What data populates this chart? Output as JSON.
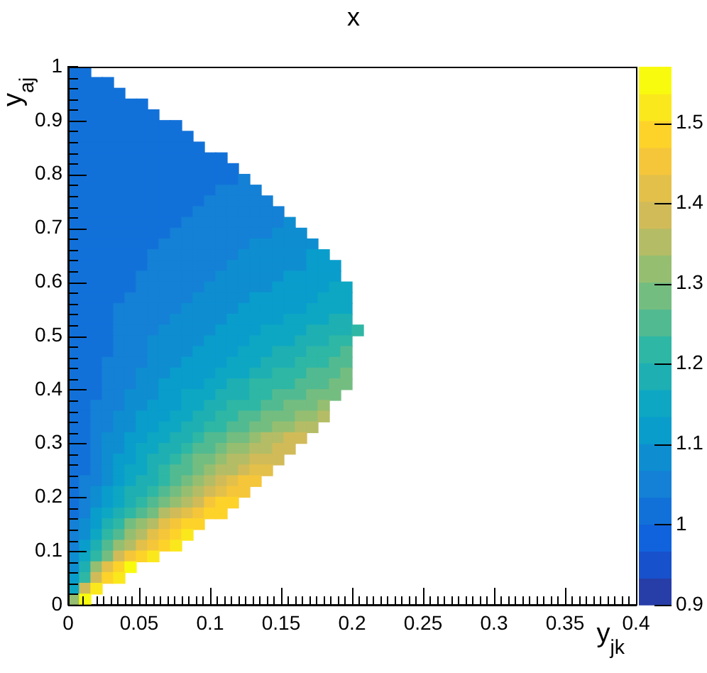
{
  "chart_data": {
    "type": "heatmap",
    "title": "x",
    "xlabel": "y$_{jk}$",
    "ylabel": "y$_{aj}$",
    "x": [
      0.004,
      0.012,
      0.02,
      0.028,
      0.036,
      0.044,
      0.052,
      0.06,
      0.068,
      0.076,
      0.084,
      0.092,
      0.1,
      0.108,
      0.116,
      0.124,
      0.132,
      0.14,
      0.148,
      0.156,
      0.164,
      0.172,
      0.18,
      0.188,
      0.196,
      0.204
    ],
    "y": [
      0.99,
      0.97,
      0.95,
      0.93,
      0.91,
      0.89,
      0.87,
      0.85,
      0.83,
      0.81,
      0.79,
      0.77,
      0.75,
      0.73,
      0.71,
      0.69,
      0.67,
      0.65,
      0.63,
      0.61,
      0.59,
      0.57,
      0.55,
      0.53,
      0.51,
      0.49,
      0.47,
      0.45,
      0.43,
      0.41,
      0.39,
      0.37,
      0.35,
      0.33,
      0.31,
      0.29,
      0.27,
      0.25,
      0.23,
      0.21,
      0.19,
      0.17,
      0.15,
      0.13,
      0.11,
      0.09,
      0.07,
      0.05,
      0.03,
      0.01
    ],
    "cells": [
      [
        1.02,
        1.02,
        null,
        null,
        null,
        null,
        null,
        null,
        null,
        null,
        null,
        null,
        null,
        null,
        null,
        null,
        null,
        null,
        null,
        null,
        null,
        null,
        null,
        null,
        null,
        null
      ],
      [
        1.02,
        1.02,
        1.02,
        1.02,
        null,
        null,
        null,
        null,
        null,
        null,
        null,
        null,
        null,
        null,
        null,
        null,
        null,
        null,
        null,
        null,
        null,
        null,
        null,
        null,
        null,
        null
      ],
      [
        1.02,
        1.02,
        1.02,
        1.02,
        1.02,
        null,
        null,
        null,
        null,
        null,
        null,
        null,
        null,
        null,
        null,
        null,
        null,
        null,
        null,
        null,
        null,
        null,
        null,
        null,
        null,
        null
      ],
      [
        1.02,
        1.02,
        1.02,
        1.02,
        1.02,
        1.02,
        1.02,
        null,
        null,
        null,
        null,
        null,
        null,
        null,
        null,
        null,
        null,
        null,
        null,
        null,
        null,
        null,
        null,
        null,
        null,
        null
      ],
      [
        1.02,
        1.02,
        1.02,
        1.02,
        1.02,
        1.02,
        1.02,
        1.02,
        null,
        null,
        null,
        null,
        null,
        null,
        null,
        null,
        null,
        null,
        null,
        null,
        null,
        null,
        null,
        null,
        null,
        null
      ],
      [
        1.02,
        1.02,
        1.02,
        1.02,
        1.02,
        1.02,
        1.02,
        1.02,
        1.02,
        1.02,
        null,
        null,
        null,
        null,
        null,
        null,
        null,
        null,
        null,
        null,
        null,
        null,
        null,
        null,
        null,
        null
      ],
      [
        1.02,
        1.02,
        1.02,
        1.02,
        1.02,
        1.02,
        1.02,
        1.02,
        1.02,
        1.02,
        1.02,
        null,
        null,
        null,
        null,
        null,
        null,
        null,
        null,
        null,
        null,
        null,
        null,
        null,
        null,
        null
      ],
      [
        1.02,
        1.02,
        1.02,
        1.02,
        1.02,
        1.02,
        1.02,
        1.02,
        1.02,
        1.02,
        1.02,
        1.02,
        null,
        null,
        null,
        null,
        null,
        null,
        null,
        null,
        null,
        null,
        null,
        null,
        null,
        null
      ],
      [
        1.02,
        1.02,
        1.02,
        1.02,
        1.02,
        1.02,
        1.02,
        1.02,
        1.02,
        1.02,
        1.02,
        1.02,
        1.02,
        1.02,
        null,
        null,
        null,
        null,
        null,
        null,
        null,
        null,
        null,
        null,
        null,
        null
      ],
      [
        1.02,
        1.02,
        1.02,
        1.02,
        1.02,
        1.02,
        1.02,
        1.02,
        1.02,
        1.02,
        1.02,
        1.02,
        1.02,
        1.02,
        1.02,
        null,
        null,
        null,
        null,
        null,
        null,
        null,
        null,
        null,
        null,
        null
      ],
      [
        1.02,
        1.02,
        1.02,
        1.02,
        1.02,
        1.02,
        1.02,
        1.02,
        1.02,
        1.02,
        1.02,
        1.02,
        1.02,
        1.02,
        1.02,
        1.05,
        null,
        null,
        null,
        null,
        null,
        null,
        null,
        null,
        null,
        null
      ],
      [
        1.02,
        1.02,
        1.02,
        1.02,
        1.02,
        1.02,
        1.02,
        1.02,
        1.02,
        1.02,
        1.02,
        1.02,
        1.02,
        1.05,
        1.05,
        1.05,
        1.05,
        null,
        null,
        null,
        null,
        null,
        null,
        null,
        null,
        null
      ],
      [
        1.02,
        1.02,
        1.02,
        1.02,
        1.02,
        1.02,
        1.02,
        1.02,
        1.02,
        1.02,
        1.02,
        1.02,
        1.05,
        1.05,
        1.05,
        1.05,
        1.05,
        1.05,
        null,
        null,
        null,
        null,
        null,
        null,
        null,
        null
      ],
      [
        1.02,
        1.02,
        1.02,
        1.02,
        1.02,
        1.02,
        1.02,
        1.02,
        1.02,
        1.02,
        1.02,
        1.05,
        1.05,
        1.05,
        1.05,
        1.05,
        1.05,
        1.05,
        1.05,
        null,
        null,
        null,
        null,
        null,
        null,
        null
      ],
      [
        1.02,
        1.02,
        1.02,
        1.02,
        1.02,
        1.02,
        1.02,
        1.02,
        1.02,
        1.02,
        1.05,
        1.05,
        1.05,
        1.05,
        1.05,
        1.05,
        1.05,
        1.05,
        1.05,
        1.08,
        null,
        null,
        null,
        null,
        null,
        null
      ],
      [
        1.02,
        1.02,
        1.02,
        1.02,
        1.02,
        1.02,
        1.02,
        1.02,
        1.02,
        1.05,
        1.05,
        1.05,
        1.05,
        1.05,
        1.05,
        1.05,
        1.05,
        1.05,
        1.08,
        1.08,
        1.08,
        null,
        null,
        null,
        null,
        null
      ],
      [
        1.02,
        1.02,
        1.02,
        1.02,
        1.02,
        1.02,
        1.02,
        1.02,
        1.05,
        1.05,
        1.05,
        1.05,
        1.05,
        1.05,
        1.05,
        1.05,
        1.08,
        1.08,
        1.08,
        1.08,
        1.08,
        1.08,
        null,
        null,
        null,
        null
      ],
      [
        1.02,
        1.02,
        1.02,
        1.02,
        1.02,
        1.02,
        1.02,
        1.05,
        1.05,
        1.05,
        1.05,
        1.05,
        1.05,
        1.05,
        1.05,
        1.08,
        1.08,
        1.08,
        1.08,
        1.08,
        1.08,
        1.12,
        1.12,
        null,
        null,
        null
      ],
      [
        1.02,
        1.02,
        1.02,
        1.02,
        1.02,
        1.02,
        1.02,
        1.05,
        1.05,
        1.05,
        1.05,
        1.05,
        1.05,
        1.05,
        1.08,
        1.08,
        1.08,
        1.08,
        1.08,
        1.08,
        1.08,
        1.12,
        1.12,
        1.12,
        null,
        null
      ],
      [
        1.02,
        1.02,
        1.02,
        1.02,
        1.02,
        1.02,
        1.05,
        1.05,
        1.05,
        1.05,
        1.05,
        1.05,
        1.05,
        1.08,
        1.08,
        1.08,
        1.08,
        1.08,
        1.08,
        1.12,
        1.12,
        1.12,
        1.12,
        1.12,
        null,
        null
      ],
      [
        1.02,
        1.02,
        1.02,
        1.02,
        1.02,
        1.02,
        1.05,
        1.05,
        1.05,
        1.05,
        1.05,
        1.05,
        1.08,
        1.08,
        1.08,
        1.08,
        1.08,
        1.08,
        1.12,
        1.12,
        1.12,
        1.12,
        1.12,
        1.15,
        1.15,
        null
      ],
      [
        1.02,
        1.02,
        1.02,
        1.02,
        1.02,
        1.05,
        1.05,
        1.05,
        1.05,
        1.05,
        1.05,
        1.08,
        1.08,
        1.08,
        1.08,
        1.08,
        1.12,
        1.12,
        1.12,
        1.12,
        1.12,
        1.12,
        1.15,
        1.15,
        1.15,
        null
      ],
      [
        1.02,
        1.02,
        1.02,
        1.02,
        1.05,
        1.05,
        1.05,
        1.05,
        1.05,
        1.05,
        1.08,
        1.08,
        1.08,
        1.08,
        1.08,
        1.12,
        1.12,
        1.12,
        1.12,
        1.12,
        1.12,
        1.15,
        1.15,
        1.15,
        1.15,
        null
      ],
      [
        1.02,
        1.02,
        1.02,
        1.02,
        1.05,
        1.05,
        1.05,
        1.05,
        1.05,
        1.08,
        1.08,
        1.08,
        1.08,
        1.08,
        1.12,
        1.12,
        1.12,
        1.12,
        1.12,
        1.15,
        1.15,
        1.15,
        1.15,
        1.18,
        1.18,
        null
      ],
      [
        1.02,
        1.02,
        1.02,
        1.02,
        1.05,
        1.05,
        1.05,
        1.05,
        1.08,
        1.08,
        1.08,
        1.08,
        1.08,
        1.12,
        1.12,
        1.12,
        1.12,
        1.15,
        1.15,
        1.15,
        1.15,
        1.18,
        1.18,
        1.18,
        1.18,
        1.22
      ],
      [
        1.02,
        1.02,
        1.02,
        1.02,
        1.05,
        1.05,
        1.05,
        1.08,
        1.08,
        1.08,
        1.08,
        1.08,
        1.12,
        1.12,
        1.12,
        1.12,
        1.15,
        1.15,
        1.15,
        1.15,
        1.18,
        1.18,
        1.18,
        1.22,
        1.22,
        null
      ],
      [
        1.02,
        1.02,
        1.02,
        1.02,
        1.05,
        1.05,
        1.05,
        1.08,
        1.08,
        1.08,
        1.08,
        1.12,
        1.12,
        1.12,
        1.12,
        1.15,
        1.15,
        1.15,
        1.18,
        1.18,
        1.18,
        1.22,
        1.22,
        1.22,
        1.25,
        null
      ],
      [
        1.02,
        1.02,
        1.02,
        1.05,
        1.05,
        1.05,
        1.05,
        1.08,
        1.08,
        1.08,
        1.12,
        1.12,
        1.12,
        1.12,
        1.15,
        1.15,
        1.15,
        1.18,
        1.18,
        1.18,
        1.22,
        1.22,
        1.22,
        1.25,
        1.25,
        null
      ],
      [
        1.02,
        1.02,
        1.02,
        1.05,
        1.05,
        1.05,
        1.08,
        1.08,
        1.08,
        1.12,
        1.12,
        1.12,
        1.12,
        1.15,
        1.15,
        1.15,
        1.18,
        1.18,
        1.22,
        1.22,
        1.22,
        1.25,
        1.25,
        1.25,
        1.29,
        null
      ],
      [
        1.02,
        1.02,
        1.02,
        1.05,
        1.05,
        1.05,
        1.08,
        1.08,
        1.12,
        1.12,
        1.12,
        1.12,
        1.15,
        1.15,
        1.18,
        1.18,
        1.22,
        1.22,
        1.22,
        1.22,
        1.25,
        1.25,
        1.25,
        1.29,
        1.29,
        null
      ],
      [
        1.02,
        1.02,
        1.02,
        1.05,
        1.05,
        1.08,
        1.08,
        1.08,
        1.12,
        1.12,
        1.15,
        1.15,
        1.15,
        1.18,
        1.18,
        1.18,
        1.22,
        1.22,
        1.25,
        1.25,
        1.25,
        1.29,
        1.29,
        1.29,
        null,
        null
      ],
      [
        1.02,
        1.02,
        1.05,
        1.05,
        1.05,
        1.08,
        1.08,
        1.12,
        1.12,
        1.12,
        1.15,
        1.15,
        1.18,
        1.18,
        1.22,
        1.22,
        1.22,
        1.25,
        1.25,
        1.29,
        1.29,
        1.29,
        1.32,
        null,
        null,
        null
      ],
      [
        1.02,
        1.02,
        1.05,
        1.05,
        1.08,
        1.08,
        1.12,
        1.12,
        1.12,
        1.15,
        1.15,
        1.18,
        1.18,
        1.22,
        1.22,
        1.25,
        1.25,
        1.29,
        1.29,
        1.29,
        1.32,
        1.32,
        1.35,
        null,
        null,
        null
      ],
      [
        1.02,
        1.02,
        1.05,
        1.05,
        1.08,
        1.08,
        1.12,
        1.12,
        1.15,
        1.15,
        1.18,
        1.18,
        1.22,
        1.22,
        1.25,
        1.25,
        1.29,
        1.29,
        1.32,
        1.32,
        1.35,
        1.35,
        null,
        null,
        null,
        null
      ],
      [
        1.02,
        1.02,
        1.05,
        1.08,
        1.08,
        1.12,
        1.12,
        1.15,
        1.15,
        1.18,
        1.18,
        1.22,
        1.25,
        1.25,
        1.29,
        1.29,
        1.32,
        1.35,
        1.35,
        1.39,
        1.39,
        null,
        null,
        null,
        null,
        null
      ],
      [
        1.02,
        1.02,
        1.05,
        1.08,
        1.08,
        1.12,
        1.15,
        1.15,
        1.18,
        1.18,
        1.22,
        1.25,
        1.25,
        1.29,
        1.32,
        1.32,
        1.35,
        1.35,
        1.39,
        1.39,
        null,
        null,
        null,
        null,
        null,
        null
      ],
      [
        1.02,
        1.02,
        1.05,
        1.08,
        1.12,
        1.12,
        1.15,
        1.18,
        1.18,
        1.22,
        1.25,
        1.29,
        1.29,
        1.32,
        1.35,
        1.35,
        1.39,
        1.39,
        1.39,
        null,
        null,
        null,
        null,
        null,
        null,
        null
      ],
      [
        1.02,
        1.02,
        1.05,
        1.08,
        1.12,
        1.15,
        1.15,
        1.18,
        1.22,
        1.25,
        1.25,
        1.29,
        1.32,
        1.35,
        1.35,
        1.39,
        1.42,
        1.42,
        null,
        null,
        null,
        null,
        null,
        null,
        null,
        null
      ],
      [
        1.02,
        1.05,
        1.05,
        1.08,
        1.12,
        1.15,
        1.18,
        1.18,
        1.22,
        1.25,
        1.29,
        1.32,
        1.35,
        1.39,
        1.42,
        1.45,
        1.45,
        null,
        null,
        null,
        null,
        null,
        null,
        null,
        null,
        null
      ],
      [
        1.02,
        1.05,
        1.08,
        1.12,
        1.15,
        1.18,
        1.18,
        1.22,
        1.25,
        1.29,
        1.32,
        1.35,
        1.39,
        1.42,
        1.45,
        1.45,
        null,
        null,
        null,
        null,
        null,
        null,
        null,
        null,
        null,
        null
      ],
      [
        1.02,
        1.05,
        1.08,
        1.12,
        1.15,
        1.18,
        1.22,
        1.25,
        1.29,
        1.32,
        1.35,
        1.39,
        1.45,
        1.49,
        1.49,
        null,
        null,
        null,
        null,
        null,
        null,
        null,
        null,
        null,
        null,
        null
      ],
      [
        1.02,
        1.05,
        1.12,
        1.15,
        1.18,
        1.22,
        1.25,
        1.29,
        1.35,
        1.39,
        1.42,
        1.45,
        1.49,
        1.49,
        null,
        null,
        null,
        null,
        null,
        null,
        null,
        null,
        null,
        null,
        null,
        null
      ],
      [
        1.05,
        1.08,
        1.12,
        1.18,
        1.22,
        1.29,
        1.32,
        1.35,
        1.42,
        1.45,
        1.49,
        1.49,
        null,
        null,
        null,
        null,
        null,
        null,
        null,
        null,
        null,
        null,
        null,
        null,
        null,
        null
      ],
      [
        1.05,
        1.08,
        1.15,
        1.22,
        1.25,
        1.32,
        1.35,
        1.42,
        1.45,
        1.49,
        1.52,
        null,
        null,
        null,
        null,
        null,
        null,
        null,
        null,
        null,
        null,
        null,
        null,
        null,
        null,
        null
      ],
      [
        1.05,
        1.12,
        1.18,
        1.25,
        1.32,
        1.35,
        1.42,
        1.45,
        1.49,
        1.52,
        null,
        null,
        null,
        null,
        null,
        null,
        null,
        null,
        null,
        null,
        null,
        null,
        null,
        null,
        null,
        null
      ],
      [
        1.08,
        1.15,
        1.22,
        1.29,
        1.39,
        1.45,
        1.49,
        1.52,
        null,
        null,
        null,
        null,
        null,
        null,
        null,
        null,
        null,
        null,
        null,
        null,
        null,
        null,
        null,
        null,
        null,
        null
      ],
      [
        1.08,
        1.18,
        1.32,
        1.42,
        1.49,
        1.55,
        null,
        null,
        null,
        null,
        null,
        null,
        null,
        null,
        null,
        null,
        null,
        null,
        null,
        null,
        null,
        null,
        null,
        null,
        null,
        null
      ],
      [
        1.12,
        1.22,
        1.39,
        1.49,
        1.52,
        null,
        null,
        null,
        null,
        null,
        null,
        null,
        null,
        null,
        null,
        null,
        null,
        null,
        null,
        null,
        null,
        null,
        null,
        null,
        null,
        null
      ],
      [
        1.15,
        1.39,
        1.52,
        null,
        null,
        null,
        null,
        null,
        null,
        null,
        null,
        null,
        null,
        null,
        null,
        null,
        null,
        null,
        null,
        null,
        null,
        null,
        null,
        null,
        null,
        null
      ],
      [
        1.32,
        1.55,
        null,
        null,
        null,
        null,
        null,
        null,
        null,
        null,
        null,
        null,
        null,
        null,
        null,
        null,
        null,
        null,
        null,
        null,
        null,
        null,
        null,
        null,
        null,
        null
      ]
    ],
    "xlim": [
      0,
      0.4
    ],
    "xticks": [
      0,
      {
        "value": 0.01,
        "label": null
      },
      {
        "value": 0.02,
        "label": null
      },
      {
        "value": 0.03,
        "label": null
      },
      {
        "value": 0.04,
        "label": null
      },
      0.05,
      {
        "value": 0.06,
        "label": null
      },
      {
        "value": 0.07,
        "label": null
      },
      {
        "value": 0.08,
        "label": null
      },
      {
        "value": 0.09,
        "label": null
      },
      0.1,
      {
        "value": 0.11,
        "label": null
      },
      {
        "value": 0.12,
        "label": null
      },
      {
        "value": 0.13,
        "label": null
      },
      {
        "value": 0.14,
        "label": null
      },
      0.15,
      {
        "value": 0.16,
        "label": null
      },
      {
        "value": 0.17,
        "label": null
      },
      {
        "value": 0.18,
        "label": null
      },
      {
        "value": 0.19,
        "label": null
      },
      0.2,
      {
        "value": 0.21,
        "label": null
      },
      {
        "value": 0.22,
        "label": null
      },
      {
        "value": 0.23,
        "label": null
      },
      {
        "value": 0.24,
        "label": null
      },
      0.25,
      {
        "value": 0.26,
        "label": null
      },
      {
        "value": 0.27,
        "label": null
      },
      {
        "value": 0.28,
        "label": null
      },
      {
        "value": 0.29,
        "label": null
      },
      0.3,
      {
        "value": 0.31,
        "label": null
      },
      {
        "value": 0.32,
        "label": null
      },
      {
        "value": 0.33,
        "label": null
      },
      {
        "value": 0.34,
        "label": null
      },
      0.35,
      {
        "value": 0.36,
        "label": null
      },
      {
        "value": 0.37,
        "label": null
      },
      {
        "value": 0.38,
        "label": null
      },
      {
        "value": 0.39,
        "label": null
      },
      0.4
    ],
    "ylim": [
      0,
      1
    ],
    "yticks": [
      0,
      {
        "value": 0.02,
        "label": null
      },
      {
        "value": 0.04,
        "label": null
      },
      {
        "value": 0.06,
        "label": null
      },
      {
        "value": 0.08,
        "label": null
      },
      0.1,
      {
        "value": 0.12,
        "label": null
      },
      {
        "value": 0.14,
        "label": null
      },
      {
        "value": 0.16,
        "label": null
      },
      {
        "value": 0.18,
        "label": null
      },
      0.2,
      {
        "value": 0.22,
        "label": null
      },
      {
        "value": 0.24,
        "label": null
      },
      {
        "value": 0.26,
        "label": null
      },
      {
        "value": 0.28,
        "label": null
      },
      0.3,
      {
        "value": 0.32,
        "label": null
      },
      {
        "value": 0.34,
        "label": null
      },
      {
        "value": 0.36,
        "label": null
      },
      {
        "value": 0.38,
        "label": null
      },
      0.4,
      {
        "value": 0.42,
        "label": null
      },
      {
        "value": 0.44,
        "label": null
      },
      {
        "value": 0.46,
        "label": null
      },
      {
        "value": 0.48,
        "label": null
      },
      0.5,
      {
        "value": 0.52,
        "label": null
      },
      {
        "value": 0.54,
        "label": null
      },
      {
        "value": 0.56,
        "label": null
      },
      {
        "value": 0.58,
        "label": null
      },
      0.6,
      {
        "value": 0.62,
        "label": null
      },
      {
        "value": 0.64,
        "label": null
      },
      {
        "value": 0.66,
        "label": null
      },
      {
        "value": 0.68,
        "label": null
      },
      0.7,
      {
        "value": 0.72,
        "label": null
      },
      {
        "value": 0.74,
        "label": null
      },
      {
        "value": 0.76,
        "label": null
      },
      {
        "value": 0.78,
        "label": null
      },
      0.8,
      {
        "value": 0.82,
        "label": null
      },
      {
        "value": 0.84,
        "label": null
      },
      {
        "value": 0.86,
        "label": null
      },
      {
        "value": 0.88,
        "label": null
      },
      0.9,
      {
        "value": 0.92,
        "label": null
      },
      {
        "value": 0.94,
        "label": null
      },
      {
        "value": 0.96,
        "label": null
      },
      {
        "value": 0.98,
        "label": null
      },
      1
    ],
    "clim": [
      0.9,
      1.57
    ],
    "cticks": [
      0.9,
      1,
      1.1,
      1.2,
      1.3,
      1.4,
      1.5
    ]
  }
}
